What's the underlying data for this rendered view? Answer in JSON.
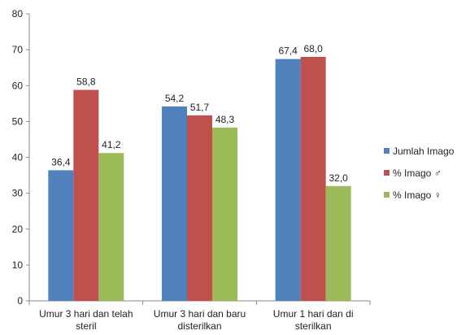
{
  "chart_data": {
    "type": "bar",
    "categories": [
      [
        "Umur 3 hari dan telah",
        "steril"
      ],
      [
        "Umur 3 hari dan baru",
        "disterilkan"
      ],
      [
        "Umur 1 hari dan di",
        "sterilkan"
      ]
    ],
    "series": [
      {
        "name": "Jumlah Imago",
        "color": "#4f81bd",
        "values": [
          36.4,
          54.2,
          67.4
        ],
        "labels": [
          "36,4",
          "54,2",
          "67,4"
        ]
      },
      {
        "name": "% Imago ♂",
        "color": "#c0504d",
        "values": [
          58.8,
          51.7,
          68.0
        ],
        "labels": [
          "58,8",
          "51,7",
          "68,0"
        ]
      },
      {
        "name": "% Imago ♀",
        "color": "#9bbb59",
        "values": [
          41.2,
          48.3,
          32.0
        ],
        "labels": [
          "41,2",
          "48,3",
          "32,0"
        ]
      }
    ],
    "ylim": [
      0,
      80
    ],
    "yticks": [
      0,
      10,
      20,
      30,
      40,
      50,
      60,
      70,
      80
    ],
    "grid": false,
    "legend_position": "right"
  }
}
